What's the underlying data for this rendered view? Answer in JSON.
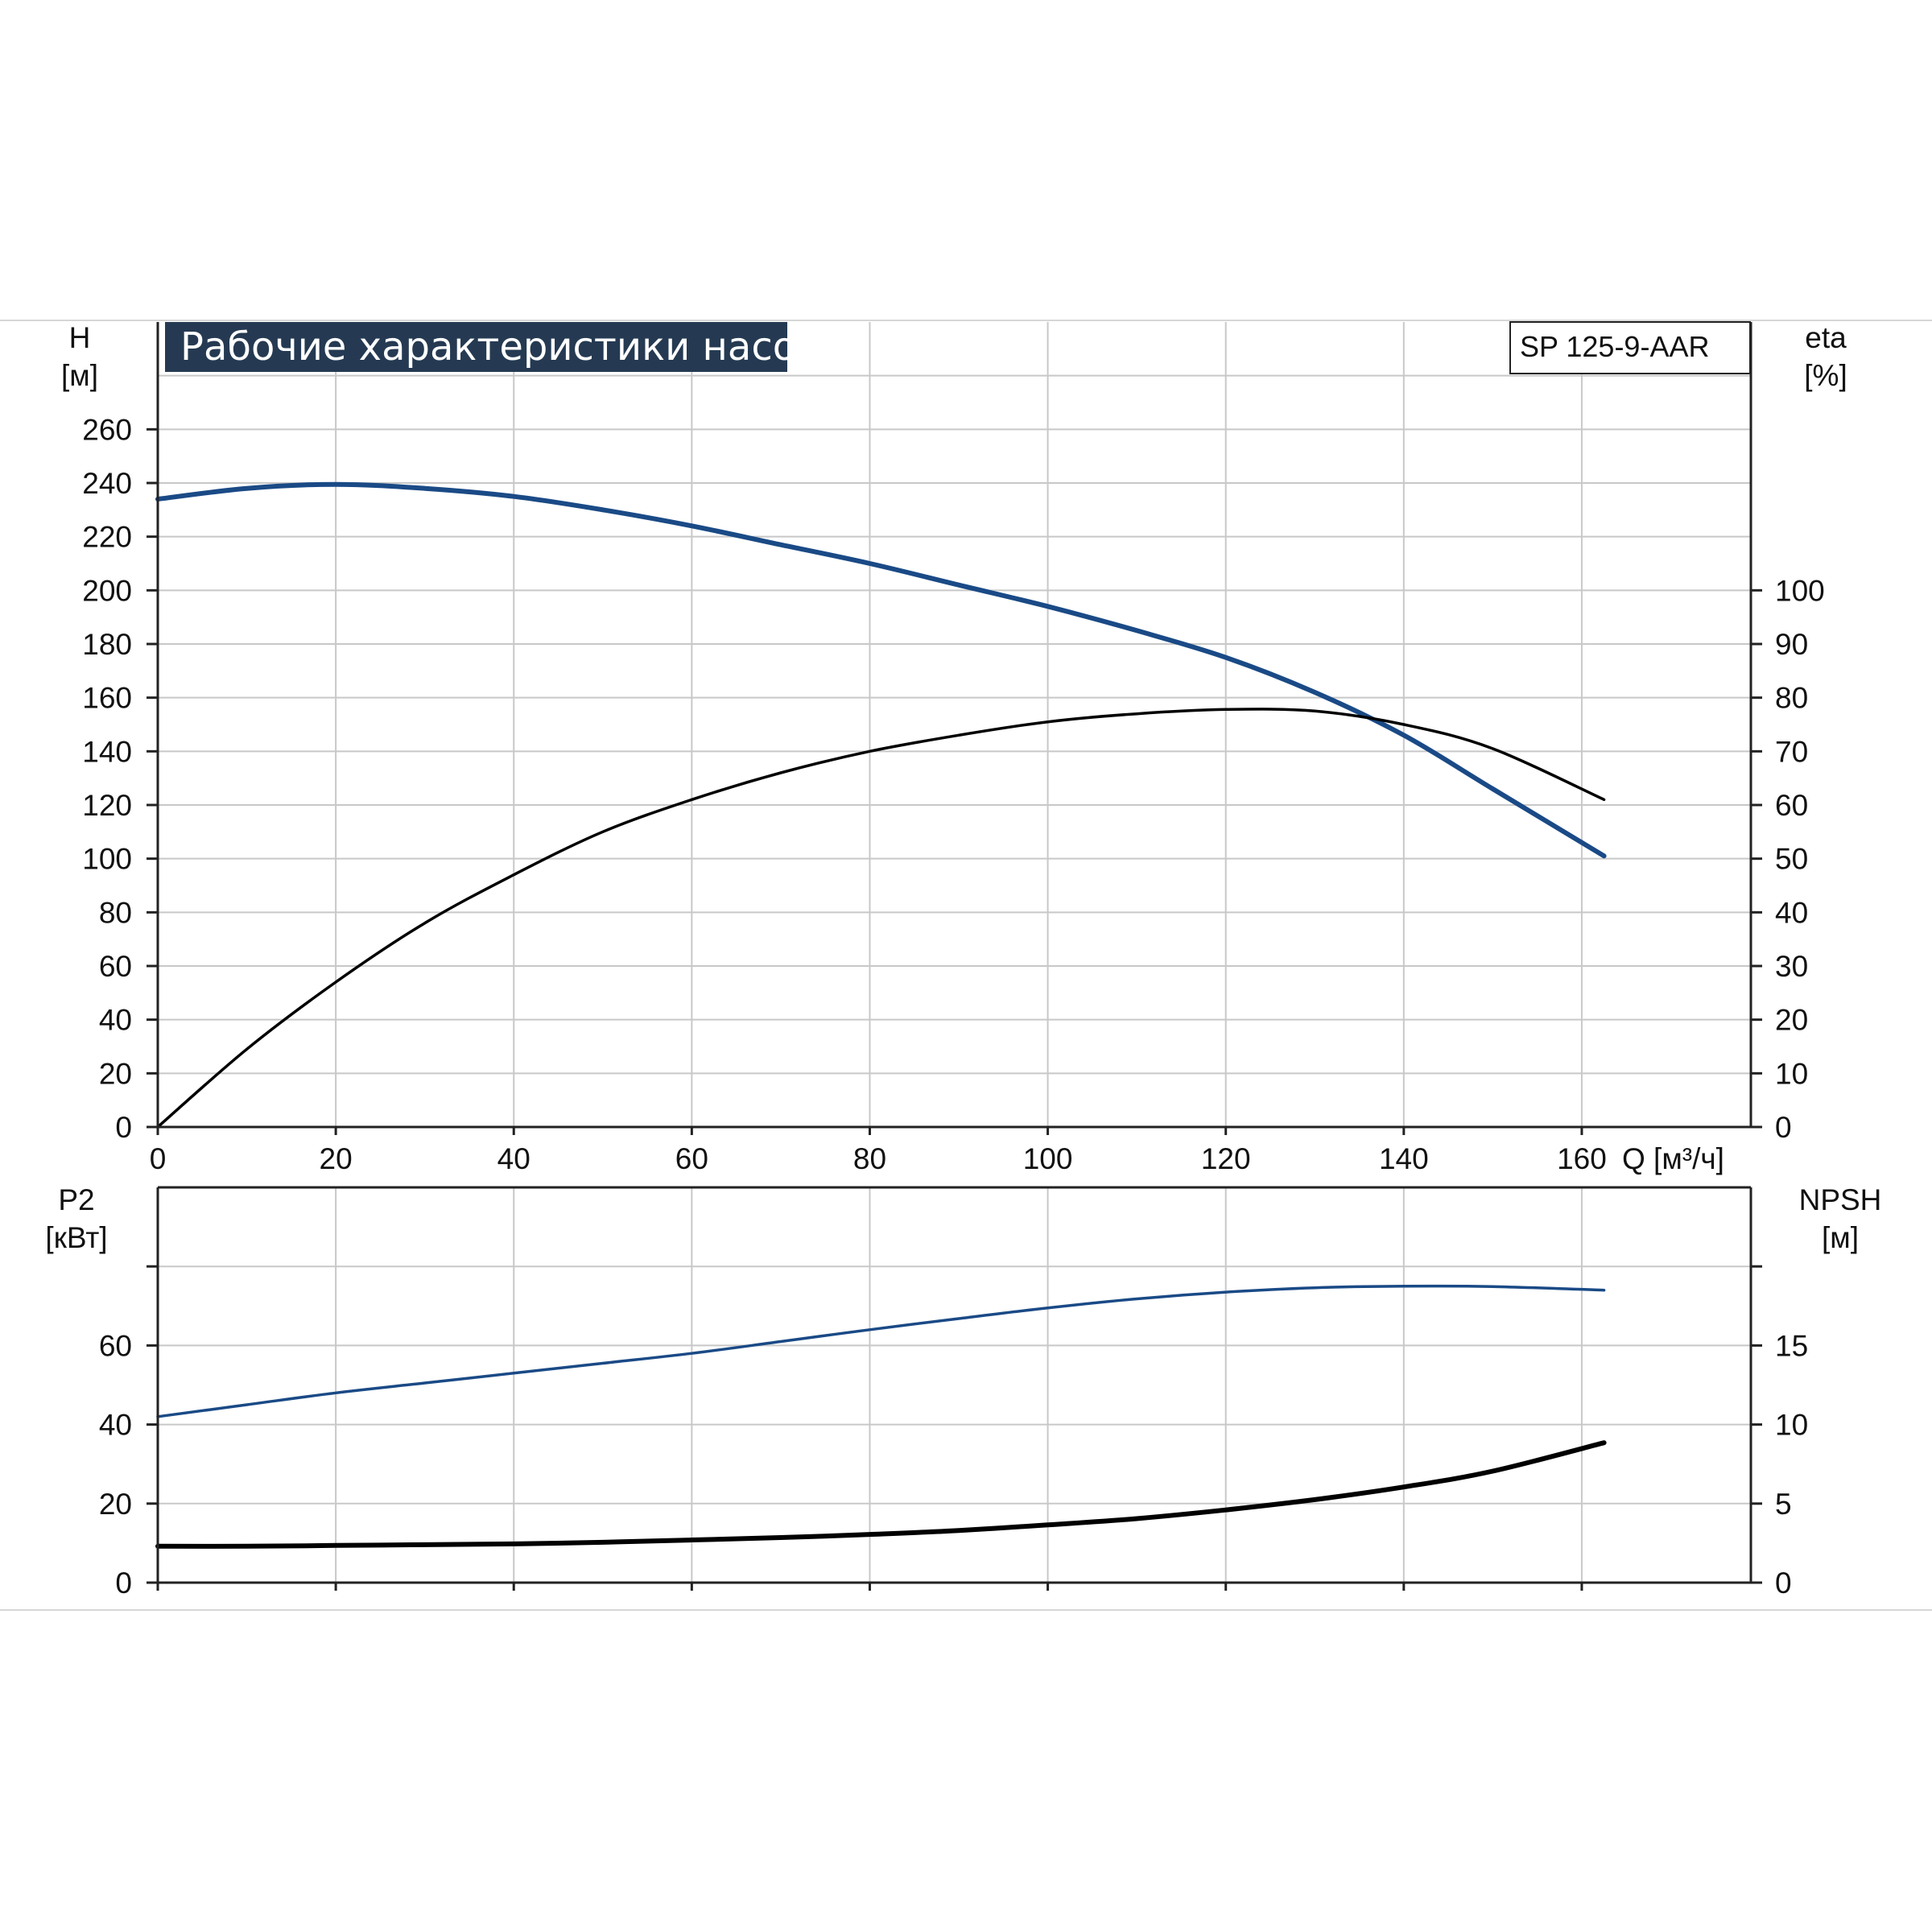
{
  "chart_data": [
    {
      "type": "line",
      "title": "Рабочие характеристики насоса",
      "model_label": "SP 125-9-AAR",
      "xlabel": "Q [м³/ч]",
      "xlim": [
        0,
        179
      ],
      "x_ticks": [
        "0",
        "20",
        "40",
        "60",
        "80",
        "100",
        "120",
        "140",
        "160"
      ],
      "y_left": {
        "label_line1": "H",
        "label_line2": "[м]",
        "ylim": [
          0,
          300
        ],
        "ticks": [
          "0",
          "20",
          "40",
          "60",
          "80",
          "100",
          "120",
          "140",
          "160",
          "180",
          "200",
          "220",
          "240",
          "260"
        ]
      },
      "y_right": {
        "label_line1": "eta",
        "label_line2": "[%]",
        "ylim": [
          0,
          150
        ],
        "ticks": [
          "0",
          "10",
          "20",
          "30",
          "40",
          "50",
          "60",
          "70",
          "80",
          "90",
          "100"
        ]
      },
      "grid": true,
      "series": [
        {
          "axis": "left",
          "color": "#1a4a86",
          "x": [
            0,
            10,
            20,
            30,
            40,
            50,
            60,
            70,
            80,
            90,
            100,
            110,
            120,
            130,
            140,
            150,
            162.5
          ],
          "values": [
            234,
            238,
            239.5,
            238,
            235,
            230,
            224,
            217,
            210,
            202,
            194,
            185,
            175,
            162,
            146,
            126,
            101
          ]
        },
        {
          "axis": "right",
          "color": "#000000",
          "x": [
            0,
            10,
            20,
            30,
            40,
            50,
            60,
            70,
            80,
            90,
            100,
            110,
            120,
            130,
            140,
            150,
            162.5
          ],
          "values": [
            0,
            14.5,
            27,
            38,
            47,
            55,
            61,
            66,
            70,
            73,
            75.5,
            77,
            77.8,
            77.5,
            75,
            70.5,
            61
          ]
        }
      ]
    },
    {
      "type": "line",
      "xlim": [
        0,
        179
      ],
      "y_left": {
        "label_line1": "P2",
        "label_line2": "[кВт]",
        "ylim": [
          0,
          100
        ],
        "ticks": [
          "0",
          "20",
          "40",
          "60"
        ]
      },
      "y_right": {
        "label_line1": "NPSH",
        "label_line2": "[м]",
        "ylim": [
          0,
          25
        ],
        "ticks": [
          "0",
          "5",
          "10",
          "15"
        ]
      },
      "grid": true,
      "series": [
        {
          "axis": "left",
          "color": "#1a4a86",
          "x": [
            0,
            10,
            20,
            30,
            40,
            50,
            60,
            70,
            80,
            90,
            100,
            110,
            120,
            130,
            140,
            150,
            162.5
          ],
          "values": [
            42,
            45,
            48,
            50.5,
            53,
            55.5,
            58,
            61,
            64,
            66.8,
            69.5,
            71.8,
            73.5,
            74.6,
            75,
            74.9,
            74
          ]
        },
        {
          "axis": "right",
          "color": "#000000",
          "x": [
            0,
            10,
            20,
            30,
            40,
            50,
            60,
            70,
            80,
            90,
            100,
            110,
            120,
            130,
            140,
            150,
            162.5
          ],
          "values": [
            2.3,
            2.3,
            2.35,
            2.4,
            2.45,
            2.55,
            2.7,
            2.85,
            3.05,
            3.3,
            3.65,
            4.05,
            4.6,
            5.25,
            6.05,
            7.05,
            8.85
          ]
        }
      ]
    }
  ]
}
